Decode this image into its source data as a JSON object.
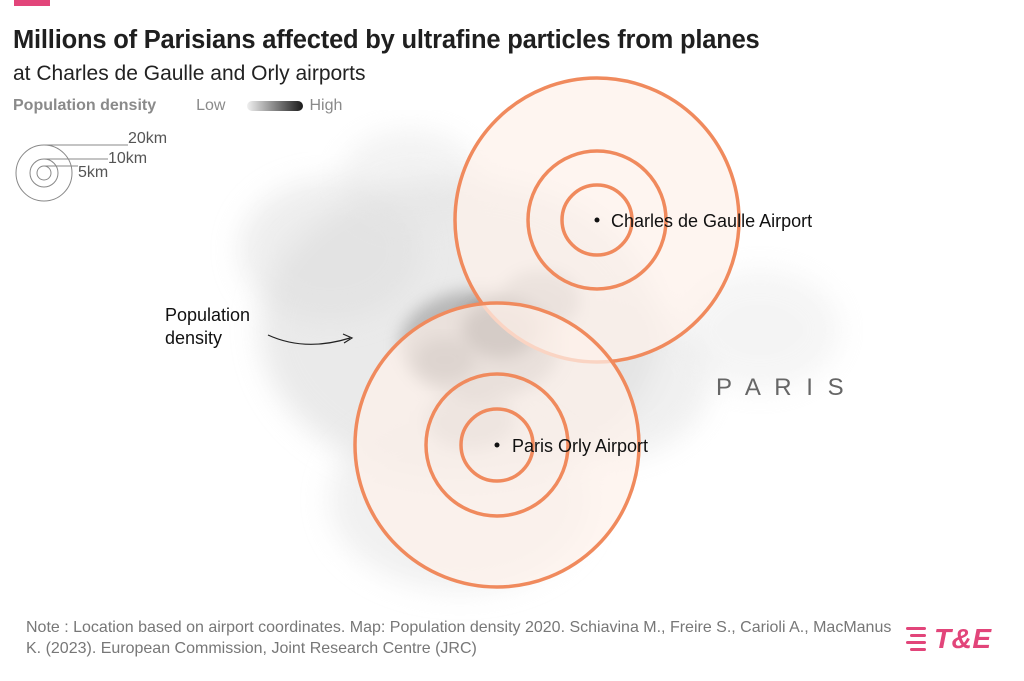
{
  "header": {
    "title": "Millions of Parisians affected by ultrafine particles from planes",
    "subtitle": "at Charles de Gaulle and Orly airports"
  },
  "legend": {
    "title": "Population density",
    "low_label": "Low",
    "high_label": "High"
  },
  "scale_bar": {
    "labels": [
      "20km",
      "10km",
      "5km"
    ]
  },
  "map": {
    "region_label": "P A R I S",
    "annotation": [
      "Population",
      "density"
    ],
    "ring_color": "#f08a5d",
    "ring_fill": "#fdf1ea",
    "airports": [
      {
        "name": "Charles de Gaulle Airport"
      },
      {
        "name": "Paris Orly Airport"
      }
    ]
  },
  "footer": {
    "note": "Note : Location based on airport coordinates. Map: Population density 2020. Schiavina M., Freire S., Carioli A., MacManus K. (2023). European Commission, Joint Research Centre (JRC)",
    "logo_text": "T&E"
  },
  "colors": {
    "brand": "#e2457a",
    "ring": "#f08a5d"
  }
}
